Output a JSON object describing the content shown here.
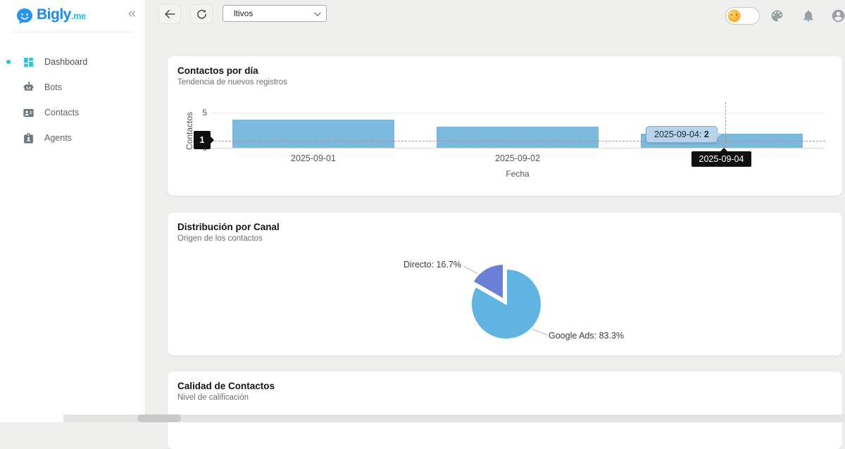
{
  "sidebar": {
    "logo": {
      "name": "Bigly",
      "tld": ".me",
      "icon": "chat-bubble-smiley"
    },
    "collapse_glyph": "«",
    "items": [
      {
        "label": "Dashboard",
        "icon": "dashboard-grid-icon",
        "active": true
      },
      {
        "label": "Bots",
        "icon": "robot-icon",
        "active": false
      },
      {
        "label": "Contacts",
        "icon": "contact-card-icon",
        "active": false
      },
      {
        "label": "Agents",
        "icon": "agent-badge-icon",
        "active": false
      }
    ]
  },
  "topbar": {
    "back_icon": "arrow-left",
    "refresh_icon": "refresh-arrow",
    "filter_value": "ltivos",
    "right_icons": [
      "theme-toggle-sun",
      "palette-icon",
      "notifications-bell-icon",
      "account-circle-icon"
    ]
  },
  "cards": [
    {
      "title": "Contactos por día",
      "subtitle": "Tendencia de nuevos registros"
    },
    {
      "title": "Distribución por Canal",
      "subtitle": "Origen de los contactos"
    },
    {
      "title": "Calidad de Contactos",
      "subtitle": "Nivel de calificación"
    }
  ],
  "colors": {
    "brand_blue": "#1e88e5",
    "brand_teal": "#26c6da",
    "bar_blue": "#7cb9de",
    "pie_google_ads": "#5fb4e1",
    "pie_directo": "#6a7fd8",
    "pointer_black": "#101010",
    "tooltip_blue_bg": "#b7d4e9"
  },
  "chart_data": [
    {
      "type": "bar",
      "title": "Contactos por día",
      "subtitle": "Tendencia de nuevos registros",
      "categories": [
        "2025-09-01",
        "2025-09-02",
        "2025-09-04"
      ],
      "values": [
        4,
        3,
        2
      ],
      "xlabel": "Fecha",
      "ylabel": "Contactos",
      "ylim": [
        0,
        5
      ],
      "yticks": [
        0,
        5
      ],
      "grid": true,
      "bar_color": "#7cb9de",
      "crosshair": {
        "y_pointer_label": "1",
        "x_pointer_label": "2025-09-04",
        "tooltip_prefix": "2025-09-04: ",
        "tooltip_value": "2"
      }
    },
    {
      "type": "pie",
      "title": "Distribución por Canal",
      "subtitle": "Origen de los contactos",
      "series": [
        {
          "name": "Google Ads",
          "pct": 83.3,
          "label": "Google Ads: 83.3%",
          "color": "#5fb4e1",
          "exploded": false
        },
        {
          "name": "Directo",
          "pct": 16.7,
          "label": "Directo: 16.7%",
          "color": "#6a7fd8",
          "exploded": true
        }
      ],
      "legend_position": "none",
      "label_style": "outside-leader-lines"
    }
  ]
}
